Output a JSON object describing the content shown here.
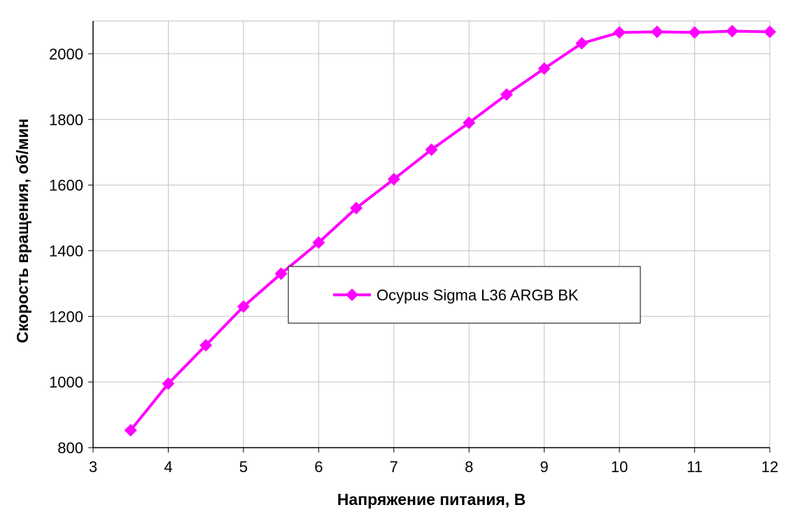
{
  "chart_data": {
    "type": "line",
    "title": "",
    "xlabel": "Напряжение питания, В",
    "ylabel": "Скорость вращения, об/мин",
    "xlim": [
      3,
      12
    ],
    "ylim": [
      800,
      2100
    ],
    "xticks": [
      3,
      4,
      5,
      6,
      7,
      8,
      9,
      10,
      11,
      12
    ],
    "yticks": [
      800,
      1000,
      1200,
      1400,
      1600,
      1800,
      2000
    ],
    "grid": true,
    "legend": "center",
    "series": [
      {
        "name": "Ocypus Sigma L36 ARGB BK",
        "color": "#ff00ff",
        "marker": "diamond",
        "x": [
          3.5,
          4,
          4.5,
          5,
          5.5,
          6,
          6.5,
          7,
          7.5,
          8,
          8.5,
          9,
          9.5,
          10,
          10.5,
          11,
          11.5,
          12
        ],
        "y": [
          853,
          995,
          1112,
          1230,
          1330,
          1425,
          1530,
          1618,
          1708,
          1790,
          1876,
          1955,
          2032,
          2065,
          2067,
          2065,
          2069,
          2067
        ]
      }
    ]
  }
}
